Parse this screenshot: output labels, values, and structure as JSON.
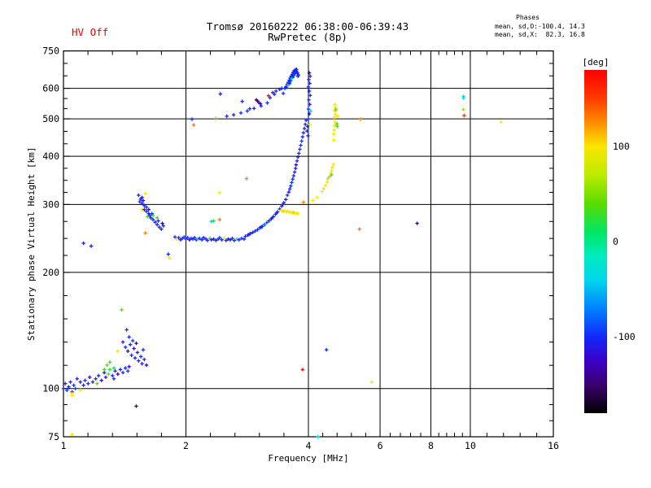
{
  "header": {
    "hv_status": "HV Off",
    "title_line1": "Tromsø 20160222 06:38:00-06:39:43",
    "title_line2": "RwPretec (8p)",
    "phases_title": "Phases",
    "phases_line_o": "mean, sd,O:-100.4, 14.3",
    "phases_line_x": "mean, sd,X:  82.3, 16.8"
  },
  "colors": {
    "hv_off_red": "#f00000",
    "axis_black": "#000000",
    "background": "#ffffff"
  },
  "chart_data": {
    "type": "scatter",
    "title": "Tromsø 20160222 06:38:00-06:39:43 RwPretec (8p)",
    "xlabel": "Frequency [MHz]",
    "ylabel": "Stationary phase Virtual Height [km]",
    "x_scale": "log",
    "y_scale": "log",
    "xlim": [
      1,
      16
    ],
    "ylim": [
      75,
      750
    ],
    "x_ticks": [
      1,
      2,
      4,
      6,
      8,
      10,
      16
    ],
    "y_ticks": [
      75,
      100,
      200,
      300,
      400,
      500,
      600,
      750
    ],
    "x_minor_divisions": 5,
    "y_minor_divisions": [
      3,
      5,
      4,
      4,
      3,
      3,
      3
    ],
    "grid": true,
    "legend_position": "none",
    "colorbar": {
      "label": "[deg]",
      "range": [
        180,
        -180
      ],
      "ticks": [
        100,
        0,
        -100
      ]
    },
    "colormap": [
      [
        180,
        "#ff0000"
      ],
      [
        150,
        "#ff3c00"
      ],
      [
        125,
        "#ff8c00"
      ],
      [
        100,
        "#fae600"
      ],
      [
        70,
        "#beeb00"
      ],
      [
        40,
        "#5adc00"
      ],
      [
        10,
        "#00e664"
      ],
      [
        -15,
        "#00ebbe"
      ],
      [
        -40,
        "#00d7eb"
      ],
      [
        -70,
        "#0082ff"
      ],
      [
        -100,
        "#1428fa"
      ],
      [
        -125,
        "#3c00c8"
      ],
      [
        -150,
        "#3c006e"
      ],
      [
        -180,
        "#000000"
      ]
    ],
    "point_format": [
      "frequency_MHz",
      "virtual_height_km",
      "phase_deg"
    ],
    "points": [
      [
        1.0,
        100,
        -100
      ],
      [
        1.01,
        103,
        -110
      ],
      [
        1.02,
        99,
        -95
      ],
      [
        1.03,
        101,
        -105
      ],
      [
        1.04,
        104,
        -100
      ],
      [
        1.05,
        98,
        -120
      ],
      [
        1.06,
        102,
        -100
      ],
      [
        1.07,
        100,
        -90
      ],
      [
        1.05,
        96,
        100
      ],
      [
        1.08,
        106,
        -105
      ],
      [
        1.1,
        104,
        -110
      ],
      [
        1.12,
        102,
        -100
      ],
      [
        1.13,
        105,
        -95
      ],
      [
        1.15,
        103,
        -100
      ],
      [
        1.16,
        107,
        -110
      ],
      [
        1.18,
        104,
        -100
      ],
      [
        1.2,
        106,
        -100
      ],
      [
        1.21,
        103,
        40
      ],
      [
        1.22,
        108,
        -100
      ],
      [
        1.24,
        105,
        -110
      ],
      [
        1.26,
        110,
        -120
      ],
      [
        1.27,
        107,
        -100
      ],
      [
        1.29,
        109,
        40
      ],
      [
        1.3,
        112,
        20
      ],
      [
        1.32,
        108,
        -100
      ],
      [
        1.34,
        111,
        -105
      ],
      [
        1.36,
        109,
        -140
      ],
      [
        1.38,
        112,
        -110
      ],
      [
        1.4,
        110,
        -100
      ],
      [
        1.42,
        113,
        -100
      ],
      [
        1.44,
        111,
        -95
      ],
      [
        1.45,
        114,
        -120
      ],
      [
        1.1,
        99,
        100
      ],
      [
        1.33,
        106,
        -100
      ],
      [
        1.05,
        76,
        100
      ],
      [
        1.05,
        97,
        100
      ],
      [
        1.51,
        90,
        -140
      ],
      [
        1.39,
        160,
        40
      ],
      [
        1.3,
        117,
        30
      ],
      [
        1.28,
        115,
        40
      ],
      [
        1.26,
        112,
        30
      ],
      [
        1.33,
        113,
        20
      ],
      [
        1.43,
        142,
        -100
      ],
      [
        1.4,
        132,
        -110
      ],
      [
        1.42,
        128,
        -100
      ],
      [
        1.44,
        125,
        -120
      ],
      [
        1.46,
        130,
        -100
      ],
      [
        1.47,
        122,
        -100
      ],
      [
        1.49,
        127,
        -140
      ],
      [
        1.5,
        120,
        -100
      ],
      [
        1.52,
        124,
        -110
      ],
      [
        1.53,
        118,
        -100
      ],
      [
        1.55,
        121,
        -100
      ],
      [
        1.48,
        133,
        -95
      ],
      [
        1.45,
        136,
        -100
      ],
      [
        1.51,
        131,
        -140
      ],
      [
        1.56,
        116,
        -110
      ],
      [
        1.58,
        119,
        -100
      ],
      [
        1.6,
        115,
        -120
      ],
      [
        1.36,
        125,
        100
      ],
      [
        1.57,
        126,
        -100
      ],
      [
        1.12,
        238,
        -100
      ],
      [
        1.17,
        234,
        -110
      ],
      [
        1.53,
        317,
        -100
      ],
      [
        1.54,
        309,
        100
      ],
      [
        1.55,
        310,
        -110
      ],
      [
        1.56,
        313,
        -100
      ],
      [
        1.54,
        305,
        -95
      ],
      [
        1.56,
        302,
        -100
      ],
      [
        1.57,
        307,
        -120
      ],
      [
        1.56,
        291,
        100
      ],
      [
        1.58,
        298,
        -100
      ],
      [
        1.58,
        291,
        -110
      ],
      [
        1.6,
        295,
        -100
      ],
      [
        1.6,
        288,
        -100
      ],
      [
        1.62,
        284,
        -110
      ],
      [
        1.63,
        281,
        -100
      ],
      [
        1.62,
        291,
        -120
      ],
      [
        1.64,
        277,
        -100
      ],
      [
        1.66,
        281,
        30
      ],
      [
        1.66,
        274,
        -100
      ],
      [
        1.65,
        284,
        -95
      ],
      [
        1.68,
        270,
        -110
      ],
      [
        1.7,
        266,
        -100
      ],
      [
        1.72,
        262,
        -100
      ],
      [
        1.74,
        259,
        -110
      ],
      [
        1.76,
        264,
        -100
      ],
      [
        1.59,
        320,
        100
      ],
      [
        1.61,
        279,
        30
      ],
      [
        1.7,
        277,
        30
      ],
      [
        1.59,
        253,
        130
      ],
      [
        1.75,
        268,
        -140
      ],
      [
        1.71,
        272,
        -100
      ],
      [
        1.81,
        223,
        -100
      ],
      [
        1.82,
        218,
        100
      ],
      [
        1.88,
        247,
        -100
      ],
      [
        1.9,
        244,
        100
      ],
      [
        1.92,
        246,
        -100
      ],
      [
        1.94,
        243,
        -110
      ],
      [
        1.96,
        245,
        -100
      ],
      [
        1.98,
        247,
        -95
      ],
      [
        2.0,
        244,
        -100
      ],
      [
        2.02,
        246,
        -100
      ],
      [
        2.04,
        243,
        -120
      ],
      [
        2.06,
        245,
        -100
      ],
      [
        2.08,
        244,
        -100
      ],
      [
        2.1,
        246,
        -110
      ],
      [
        2.12,
        243,
        -100
      ],
      [
        2.14,
        244,
        -40
      ],
      [
        2.16,
        245,
        -100
      ],
      [
        2.19,
        243,
        -100
      ],
      [
        2.21,
        246,
        -110
      ],
      [
        2.24,
        244,
        -100
      ],
      [
        2.26,
        242,
        -100
      ],
      [
        2.29,
        245,
        20
      ],
      [
        2.31,
        243,
        -100
      ],
      [
        2.34,
        244,
        -110
      ],
      [
        2.37,
        242,
        -100
      ],
      [
        2.4,
        244,
        -100
      ],
      [
        2.42,
        246,
        -95
      ],
      [
        2.45,
        243,
        -100
      ],
      [
        2.48,
        245,
        100
      ],
      [
        2.51,
        242,
        -100
      ],
      [
        2.54,
        244,
        -110
      ],
      [
        2.57,
        243,
        -100
      ],
      [
        2.6,
        245,
        -100
      ],
      [
        2.63,
        242,
        -100
      ],
      [
        2.67,
        244,
        -40
      ],
      [
        2.7,
        243,
        -100
      ],
      [
        2.74,
        245,
        -100
      ],
      [
        2.78,
        244,
        -100
      ],
      [
        2.42,
        274,
        130
      ],
      [
        2.34,
        272,
        20
      ],
      [
        2.31,
        271,
        -40
      ],
      [
        2.42,
        322,
        100
      ],
      [
        2.82,
        350,
        30
      ],
      [
        2.8,
        248,
        -100
      ],
      [
        2.84,
        250,
        -110
      ],
      [
        2.88,
        252,
        -100
      ],
      [
        2.92,
        254,
        -100
      ],
      [
        2.96,
        256,
        -95
      ],
      [
        3.0,
        258,
        -100
      ],
      [
        3.04,
        261,
        -100
      ],
      [
        3.08,
        263,
        -110
      ],
      [
        3.12,
        266,
        -100
      ],
      [
        3.16,
        269,
        -100
      ],
      [
        3.2,
        272,
        -100
      ],
      [
        3.24,
        275,
        -120
      ],
      [
        3.28,
        279,
        -100
      ],
      [
        3.32,
        283,
        -100
      ],
      [
        3.36,
        287,
        -110
      ],
      [
        3.4,
        292,
        -100
      ],
      [
        3.44,
        297,
        -100
      ],
      [
        3.48,
        303,
        -100
      ],
      [
        3.52,
        309,
        -110
      ],
      [
        2.86,
        251,
        -100
      ],
      [
        3.06,
        262,
        -100
      ],
      [
        3.26,
        277,
        -100
      ],
      [
        3.46,
        300,
        -100
      ],
      [
        3.34,
        285,
        -100
      ],
      [
        3.14,
        267,
        -40
      ],
      [
        3.55,
        317,
        -100
      ],
      [
        3.58,
        323,
        -110
      ],
      [
        3.6,
        329,
        -100
      ],
      [
        3.62,
        335,
        -100
      ],
      [
        3.64,
        342,
        -95
      ],
      [
        3.66,
        349,
        -100
      ],
      [
        3.68,
        356,
        -110
      ],
      [
        3.7,
        364,
        -100
      ],
      [
        3.72,
        372,
        -100
      ],
      [
        3.73,
        380,
        -120
      ],
      [
        3.75,
        389,
        -100
      ],
      [
        3.77,
        398,
        -100
      ],
      [
        3.79,
        407,
        -110
      ],
      [
        3.81,
        417,
        -100
      ],
      [
        3.83,
        427,
        -100
      ],
      [
        3.85,
        438,
        -95
      ],
      [
        3.87,
        449,
        -100
      ],
      [
        3.89,
        460,
        -100
      ],
      [
        3.91,
        472,
        -110
      ],
      [
        3.93,
        484,
        -100
      ],
      [
        3.95,
        496,
        -100
      ],
      [
        3.98,
        478,
        -100
      ],
      [
        3.97,
        465,
        -110
      ],
      [
        3.99,
        452,
        -100
      ],
      [
        4.0,
        500,
        -100
      ],
      [
        4.02,
        515,
        -110
      ],
      [
        4.0,
        530,
        -100
      ],
      [
        4.03,
        545,
        -100
      ],
      [
        4.01,
        560,
        -95
      ],
      [
        4.04,
        575,
        -100
      ],
      [
        4.02,
        590,
        -100
      ],
      [
        4.0,
        605,
        -110
      ],
      [
        4.03,
        618,
        -100
      ],
      [
        4.01,
        632,
        -100
      ],
      [
        4.04,
        645,
        -100
      ],
      [
        4.02,
        658,
        -120
      ],
      [
        4.05,
        524,
        -40
      ],
      [
        4.03,
        483,
        100
      ],
      [
        3.5,
        600,
        -100
      ],
      [
        3.53,
        607,
        -110
      ],
      [
        3.55,
        615,
        -100
      ],
      [
        3.57,
        622,
        -100
      ],
      [
        3.59,
        630,
        -95
      ],
      [
        3.61,
        638,
        -100
      ],
      [
        3.63,
        645,
        -110
      ],
      [
        3.65,
        652,
        -100
      ],
      [
        3.67,
        660,
        -100
      ],
      [
        3.69,
        667,
        -100
      ],
      [
        3.72,
        670,
        -120
      ],
      [
        3.74,
        665,
        -100
      ],
      [
        3.76,
        658,
        -100
      ],
      [
        3.78,
        650,
        -110
      ],
      [
        3.56,
        610,
        -40
      ],
      [
        3.62,
        628,
        -100
      ],
      [
        3.68,
        648,
        -100
      ],
      [
        3.71,
        655,
        -100
      ],
      [
        3.6,
        618,
        -100
      ],
      [
        3.66,
        640,
        -100
      ],
      [
        3.74,
        672,
        -100
      ],
      [
        3.52,
        603,
        -100
      ],
      [
        3.64,
        635,
        -40
      ],
      [
        3.7,
        662,
        -100
      ],
      [
        3.77,
        645,
        -100
      ],
      [
        3.47,
        582,
        -100
      ],
      [
        3.3,
        579,
        -100
      ],
      [
        2.07,
        499,
        -100
      ],
      [
        2.09,
        482,
        130
      ],
      [
        2.37,
        501,
        40
      ],
      [
        2.43,
        580,
        -100
      ],
      [
        2.52,
        508,
        -100
      ],
      [
        2.62,
        512,
        -110
      ],
      [
        2.73,
        518,
        -100
      ],
      [
        2.83,
        524,
        -100
      ],
      [
        2.94,
        532,
        -100
      ],
      [
        3.06,
        540,
        -100
      ],
      [
        3.17,
        550,
        -100
      ],
      [
        2.75,
        555,
        -100
      ],
      [
        2.87,
        531,
        -100
      ],
      [
        2.98,
        560,
        -140
      ],
      [
        3.0,
        556,
        -140
      ],
      [
        3.02,
        551,
        -130
      ],
      [
        3.05,
        547,
        -140
      ],
      [
        3.19,
        574,
        170
      ],
      [
        3.22,
        567,
        -100
      ],
      [
        3.27,
        585,
        -100
      ],
      [
        3.33,
        590,
        -110
      ],
      [
        3.4,
        596,
        -100
      ],
      [
        3.44,
        600,
        -100
      ],
      [
        3.43,
        290,
        100
      ],
      [
        3.47,
        288,
        110
      ],
      [
        3.5,
        289,
        100
      ],
      [
        3.53,
        287,
        100
      ],
      [
        3.56,
        288,
        95
      ],
      [
        3.59,
        286,
        100
      ],
      [
        3.62,
        287,
        100
      ],
      [
        3.65,
        285,
        100
      ],
      [
        3.68,
        286,
        110
      ],
      [
        3.71,
        284,
        100
      ],
      [
        3.74,
        285,
        100
      ],
      [
        3.77,
        284,
        95
      ],
      [
        3.89,
        304,
        130
      ],
      [
        4.1,
        307,
        100
      ],
      [
        4.2,
        313,
        100
      ],
      [
        4.32,
        324,
        100
      ],
      [
        4.36,
        330,
        95
      ],
      [
        4.41,
        336,
        100
      ],
      [
        4.45,
        343,
        100
      ],
      [
        4.47,
        350,
        110
      ],
      [
        4.51,
        354,
        60
      ],
      [
        4.54,
        361,
        100
      ],
      [
        4.56,
        367,
        100
      ],
      [
        4.58,
        374,
        95
      ],
      [
        4.61,
        381,
        100
      ],
      [
        4.56,
        358,
        40
      ],
      [
        4.62,
        457,
        100
      ],
      [
        4.63,
        468,
        95
      ],
      [
        4.64,
        480,
        100
      ],
      [
        4.65,
        491,
        100
      ],
      [
        4.63,
        502,
        110
      ],
      [
        4.66,
        513,
        100
      ],
      [
        4.64,
        524,
        100
      ],
      [
        4.66,
        535,
        95
      ],
      [
        4.65,
        545,
        100
      ],
      [
        4.67,
        528,
        40
      ],
      [
        4.7,
        485,
        30
      ],
      [
        4.71,
        478,
        40
      ],
      [
        4.72,
        508,
        100
      ],
      [
        4.62,
        440,
        100
      ],
      [
        3.87,
        112,
        170
      ],
      [
        4.43,
        126,
        -100
      ],
      [
        5.73,
        104,
        100
      ],
      [
        4.22,
        75,
        -40
      ],
      [
        5.34,
        259,
        130
      ],
      [
        7.4,
        268,
        -140
      ],
      [
        5.37,
        499,
        130
      ],
      [
        9.62,
        572,
        -40
      ],
      [
        9.62,
        566,
        -30
      ],
      [
        9.62,
        529,
        60
      ],
      [
        9.66,
        510,
        150
      ],
      [
        11.9,
        491,
        100
      ]
    ]
  }
}
